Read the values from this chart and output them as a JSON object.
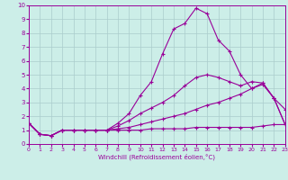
{
  "xlabel": "Windchill (Refroidissement éolien,°C)",
  "background_color": "#cceee8",
  "line_color": "#990099",
  "grid_color": "#aacccc",
  "xlim": [
    0,
    23
  ],
  "ylim": [
    0,
    10
  ],
  "xticks": [
    0,
    1,
    2,
    3,
    4,
    5,
    6,
    7,
    8,
    9,
    10,
    11,
    12,
    13,
    14,
    15,
    16,
    17,
    18,
    19,
    20,
    21,
    22,
    23
  ],
  "yticks": [
    0,
    1,
    2,
    3,
    4,
    5,
    6,
    7,
    8,
    9,
    10
  ],
  "line1_x": [
    0,
    1,
    2,
    3,
    4,
    5,
    6,
    7,
    8,
    9,
    10,
    11,
    12,
    13,
    14,
    15,
    16,
    17,
    18,
    19,
    20,
    21,
    22,
    23
  ],
  "line1_y": [
    1.5,
    0.7,
    0.6,
    1.0,
    1.0,
    1.0,
    1.0,
    1.0,
    1.0,
    1.0,
    1.0,
    1.1,
    1.1,
    1.1,
    1.1,
    1.2,
    1.2,
    1.2,
    1.2,
    1.2,
    1.2,
    1.3,
    1.4,
    1.4
  ],
  "line2_x": [
    0,
    1,
    2,
    3,
    4,
    5,
    6,
    7,
    8,
    9,
    10,
    11,
    12,
    13,
    14,
    15,
    16,
    17,
    18,
    19,
    20,
    21,
    22,
    23
  ],
  "line2_y": [
    1.5,
    0.7,
    0.6,
    1.0,
    1.0,
    1.0,
    1.0,
    1.0,
    1.1,
    1.2,
    1.4,
    1.6,
    1.8,
    2.0,
    2.2,
    2.5,
    2.8,
    3.0,
    3.3,
    3.6,
    4.0,
    4.3,
    3.3,
    1.4
  ],
  "line3_x": [
    0,
    1,
    2,
    3,
    4,
    5,
    6,
    7,
    8,
    9,
    10,
    11,
    12,
    13,
    14,
    15,
    16,
    17,
    18,
    19,
    20,
    21,
    22,
    23
  ],
  "line3_y": [
    1.5,
    0.7,
    0.6,
    1.0,
    1.0,
    1.0,
    1.0,
    1.0,
    1.3,
    1.7,
    2.2,
    2.6,
    3.0,
    3.5,
    4.2,
    4.8,
    5.0,
    4.8,
    4.5,
    4.2,
    4.5,
    4.4,
    3.3,
    1.4
  ],
  "line4_x": [
    0,
    1,
    2,
    3,
    4,
    5,
    6,
    7,
    8,
    9,
    10,
    11,
    12,
    13,
    14,
    15,
    16,
    17,
    18,
    19,
    20,
    21,
    22,
    23
  ],
  "line4_y": [
    1.5,
    0.7,
    0.6,
    1.0,
    1.0,
    1.0,
    1.0,
    1.0,
    1.5,
    2.2,
    3.5,
    4.5,
    6.5,
    8.3,
    8.7,
    9.8,
    9.4,
    7.5,
    6.7,
    5.0,
    4.0,
    4.4,
    3.3,
    2.5
  ]
}
